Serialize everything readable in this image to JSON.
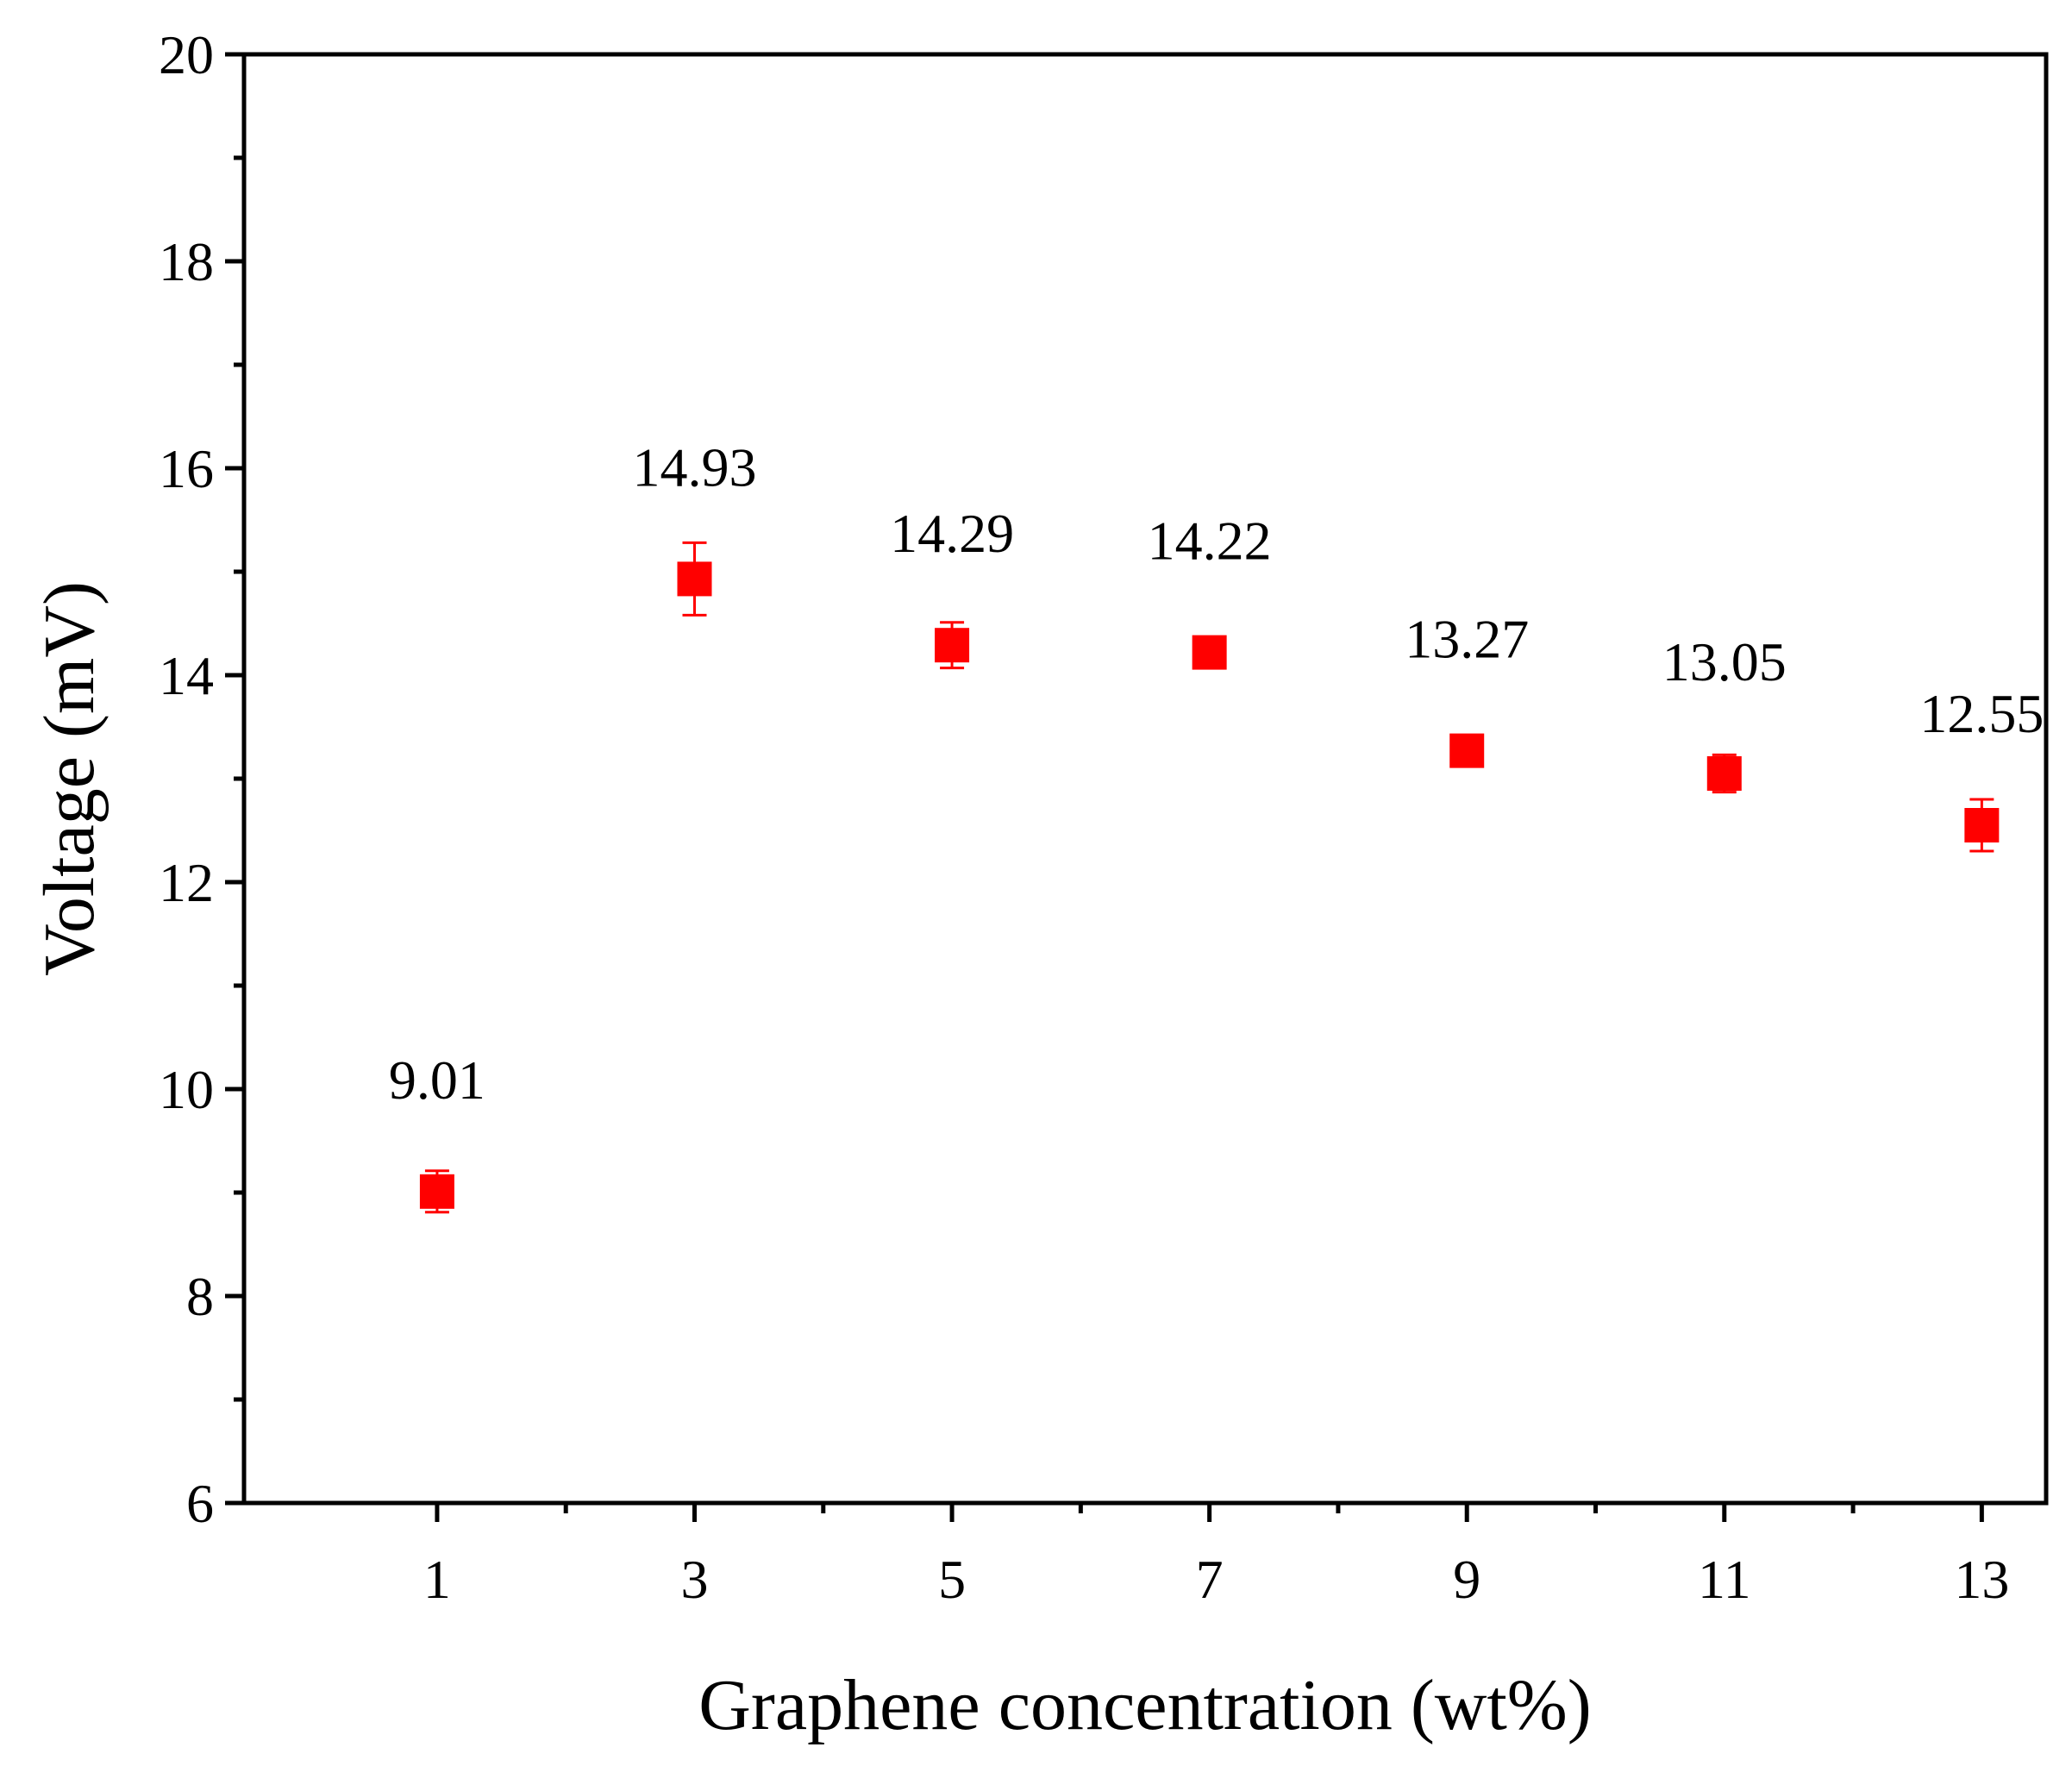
{
  "chart_data": {
    "type": "scatter",
    "title": "",
    "xlabel": "Graphene concentration (wt%)",
    "ylabel": "Voltage (mV)",
    "xlim": [
      -0.5,
      13.5
    ],
    "ylim": [
      6,
      20
    ],
    "xticks": [
      1,
      3,
      5,
      7,
      9,
      11,
      13
    ],
    "xtick_labels": [
      "1",
      "3",
      "5",
      "7",
      "9",
      "11",
      "13"
    ],
    "xminor": [
      2,
      4,
      6,
      8,
      10,
      12
    ],
    "yticks": [
      6,
      8,
      10,
      12,
      14,
      16,
      18,
      20
    ],
    "ytick_labels": [
      "6",
      "8",
      "10",
      "12",
      "14",
      "16",
      "18",
      "20"
    ],
    "yminor": [
      7,
      9,
      11,
      13,
      15,
      17,
      19
    ],
    "grid": false,
    "marker_color": "#ff0000",
    "series": [
      {
        "name": "Voltage",
        "marker": "square",
        "x": [
          1,
          3,
          5,
          7,
          9,
          11,
          13
        ],
        "y": [
          9.01,
          14.93,
          14.29,
          14.22,
          13.27,
          13.05,
          12.55
        ],
        "error": [
          0.2,
          0.35,
          0.22,
          0.07,
          0.07,
          0.18,
          0.25
        ],
        "labels": [
          "9.01",
          "14.93",
          "14.29",
          "14.22",
          "13.27",
          "13.05",
          "12.55"
        ]
      }
    ]
  }
}
